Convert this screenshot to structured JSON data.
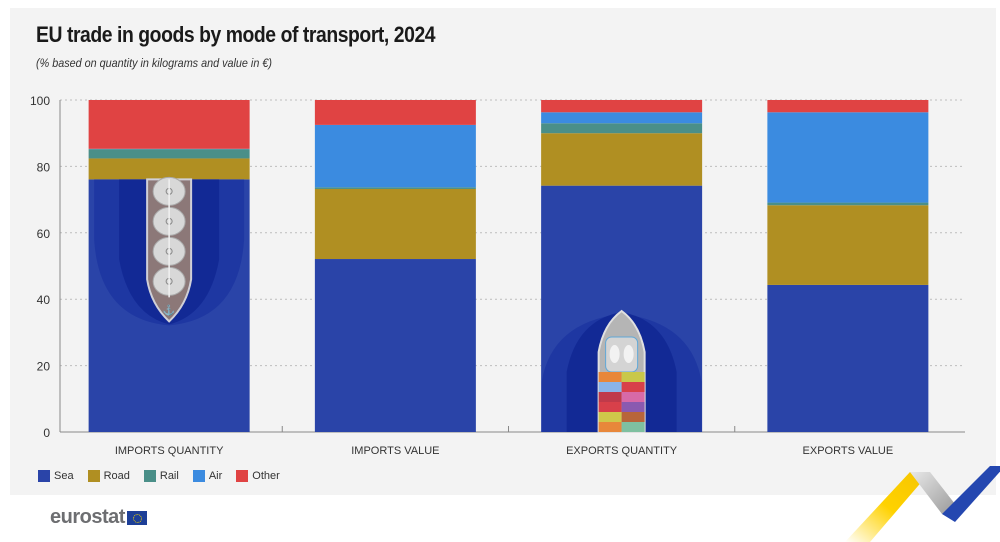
{
  "header": {
    "title": "EU trade in goods by mode of transport, 2024",
    "subtitle": "(% based on quantity in kilograms and value in €)"
  },
  "colors": {
    "Sea": "#2a44a8",
    "Road": "#b08f22",
    "Rail": "#4a8f88",
    "Air": "#3b8be0",
    "Other": "#e04343",
    "panel": "#f3f3f3"
  },
  "legend": [
    {
      "label": "Sea",
      "key": "Sea"
    },
    {
      "label": "Road",
      "key": "Road"
    },
    {
      "label": "Rail",
      "key": "Rail"
    },
    {
      "label": "Air",
      "key": "Air"
    },
    {
      "label": "Other",
      "key": "Other"
    }
  ],
  "branding": {
    "logo_text": "eurostat"
  },
  "chart_data": {
    "type": "bar",
    "stacked": true,
    "title": "EU trade in goods by mode of transport, 2024",
    "subtitle": "(% based on quantity in kilograms and value in €)",
    "xlabel": "",
    "ylabel": "",
    "ylim": [
      0,
      100
    ],
    "yticks": [
      0,
      20,
      40,
      60,
      80,
      100
    ],
    "grid": true,
    "legend_position": "bottom-left",
    "categories": [
      "IMPORTS QUANTITY",
      "IMPORTS VALUE",
      "EXPORTS QUANTITY",
      "EXPORTS VALUE"
    ],
    "series": [
      {
        "name": "Sea",
        "values": [
          76.1,
          52.1,
          74.2,
          44.3
        ]
      },
      {
        "name": "Road",
        "values": [
          6.3,
          21.1,
          15.8,
          24.0
        ]
      },
      {
        "name": "Rail",
        "values": [
          2.8,
          0.5,
          3.0,
          0.8
        ]
      },
      {
        "name": "Air",
        "values": [
          0.1,
          18.8,
          3.3,
          27.2
        ]
      },
      {
        "name": "Other",
        "values": [
          14.7,
          7.5,
          3.7,
          3.7
        ]
      }
    ],
    "decorations": [
      {
        "category": "IMPORTS QUANTITY",
        "icon": "tanker-ship-icon"
      },
      {
        "category": "EXPORTS QUANTITY",
        "icon": "container-ship-icon"
      }
    ]
  }
}
